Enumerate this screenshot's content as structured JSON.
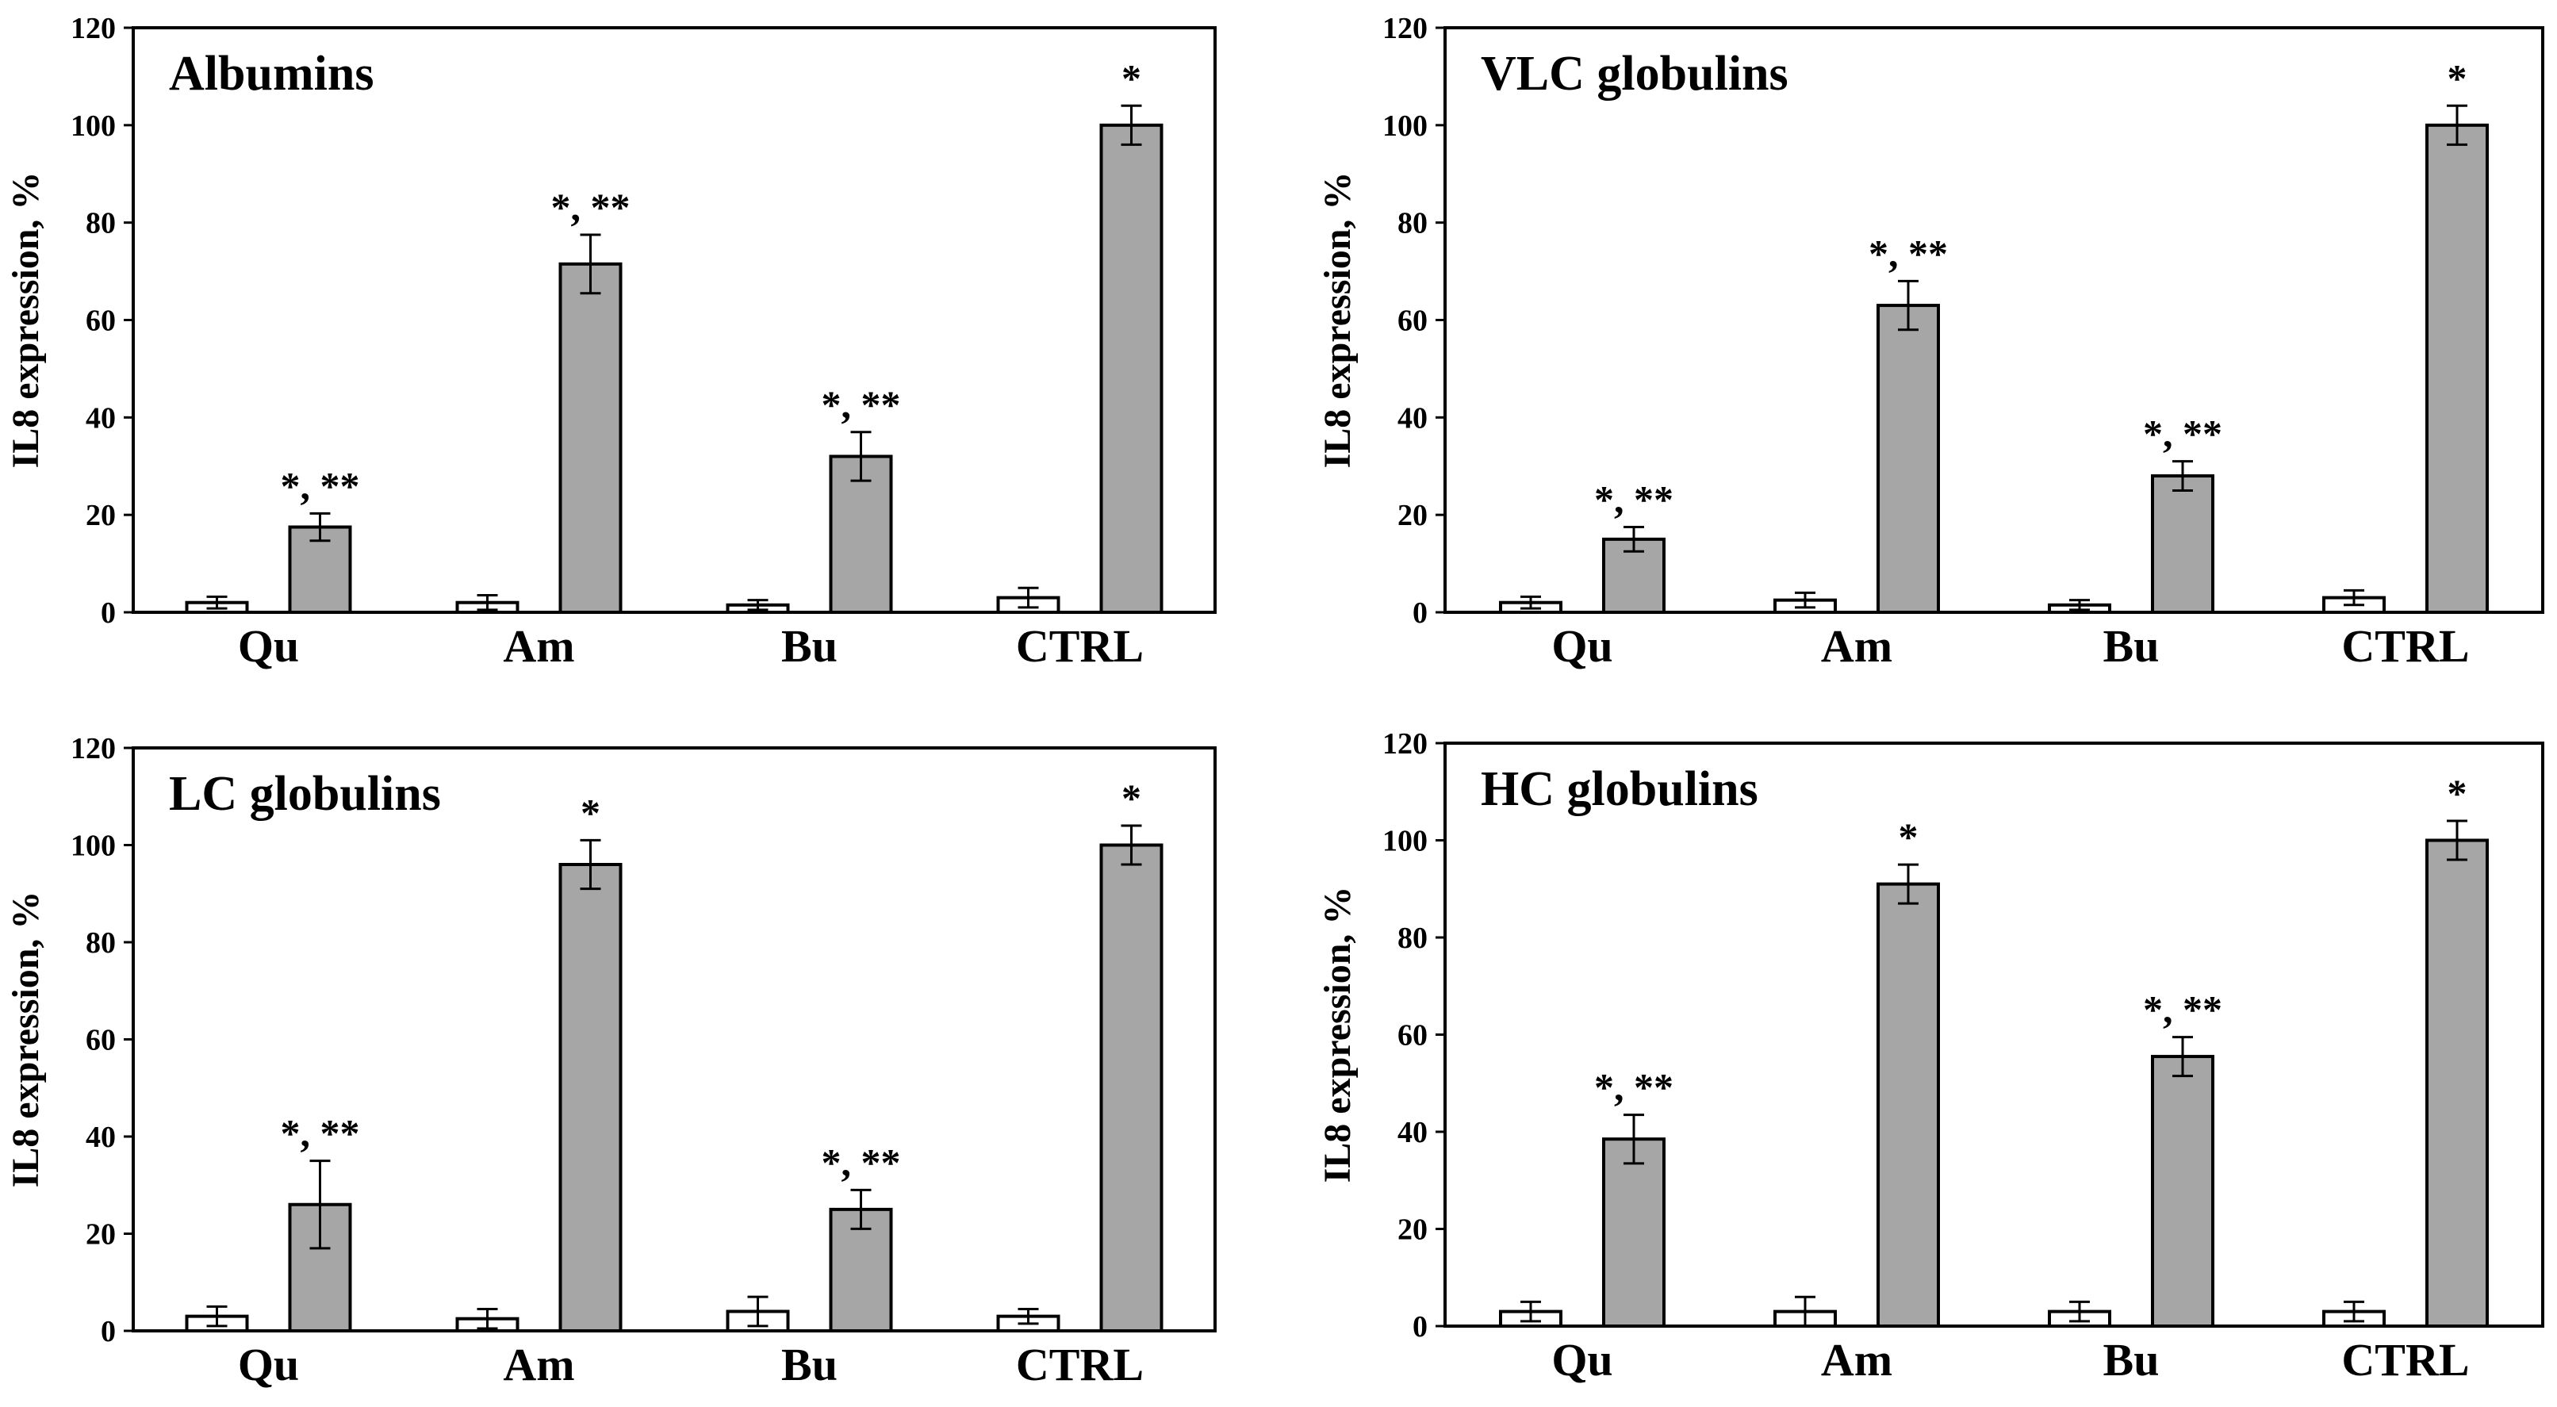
{
  "chart_data": [
    {
      "type": "bar",
      "title": "Albumins",
      "ylabel": "IL8 expression, %",
      "ylim": [
        0,
        120
      ],
      "yticks": [
        0,
        20,
        40,
        60,
        80,
        100,
        120
      ],
      "grid": false,
      "categories": [
        "Qu",
        "Am",
        "Bu",
        "CTRL"
      ],
      "series": [
        {
          "color": "#ffffff",
          "values": [
            2,
            2,
            1.5,
            3
          ],
          "errors": [
            1.2,
            1.5,
            1,
            2
          ]
        },
        {
          "color": "#a6a6a6",
          "values": [
            17.5,
            71.5,
            32,
            100
          ],
          "errors": [
            2.8,
            6,
            5,
            4
          ],
          "annotations": [
            "*, **",
            "*, **",
            "*, **",
            "*"
          ]
        }
      ]
    },
    {
      "type": "bar",
      "title": "VLC globulins",
      "ylabel": "IL8 expression, %",
      "ylim": [
        0,
        120
      ],
      "yticks": [
        0,
        20,
        40,
        60,
        80,
        100,
        120
      ],
      "grid": false,
      "categories": [
        "Qu",
        "Am",
        "Bu",
        "CTRL"
      ],
      "series": [
        {
          "color": "#ffffff",
          "values": [
            2,
            2.5,
            1.5,
            3
          ],
          "errors": [
            1.2,
            1.5,
            1,
            1.5
          ]
        },
        {
          "color": "#a6a6a6",
          "values": [
            15,
            63,
            28,
            100
          ],
          "errors": [
            2.5,
            5,
            3,
            4
          ],
          "annotations": [
            "*, **",
            "*, **",
            "*, **",
            "*"
          ]
        }
      ]
    },
    {
      "type": "bar",
      "title": "LC globulins",
      "ylabel": "IL8 expression, %",
      "ylim": [
        0,
        120
      ],
      "yticks": [
        0,
        20,
        40,
        60,
        80,
        100,
        120
      ],
      "grid": false,
      "categories": [
        "Qu",
        "Am",
        "Bu",
        "CTRL"
      ],
      "series": [
        {
          "color": "#ffffff",
          "values": [
            3,
            2.5,
            4,
            3
          ],
          "errors": [
            2,
            2,
            3,
            1.5
          ]
        },
        {
          "color": "#a6a6a6",
          "values": [
            26,
            96,
            25,
            100
          ],
          "errors": [
            9,
            5,
            4,
            4
          ],
          "annotations": [
            "*, **",
            "*",
            "*, **",
            "*"
          ]
        }
      ]
    },
    {
      "type": "bar",
      "title": "HC globulins",
      "ylabel": "IL8 expression, %",
      "ylim": [
        0,
        120
      ],
      "yticks": [
        0,
        20,
        40,
        60,
        80,
        100,
        120
      ],
      "grid": false,
      "categories": [
        "Qu",
        "Am",
        "Bu",
        "CTRL"
      ],
      "series": [
        {
          "color": "#ffffff",
          "values": [
            3,
            3,
            3,
            3
          ],
          "errors": [
            2,
            3,
            2,
            2
          ]
        },
        {
          "color": "#a6a6a6",
          "values": [
            38.5,
            91,
            55.5,
            100
          ],
          "errors": [
            5,
            4,
            4,
            4
          ],
          "annotations": [
            "*, **",
            "*",
            "*, **",
            "*"
          ]
        }
      ]
    }
  ]
}
